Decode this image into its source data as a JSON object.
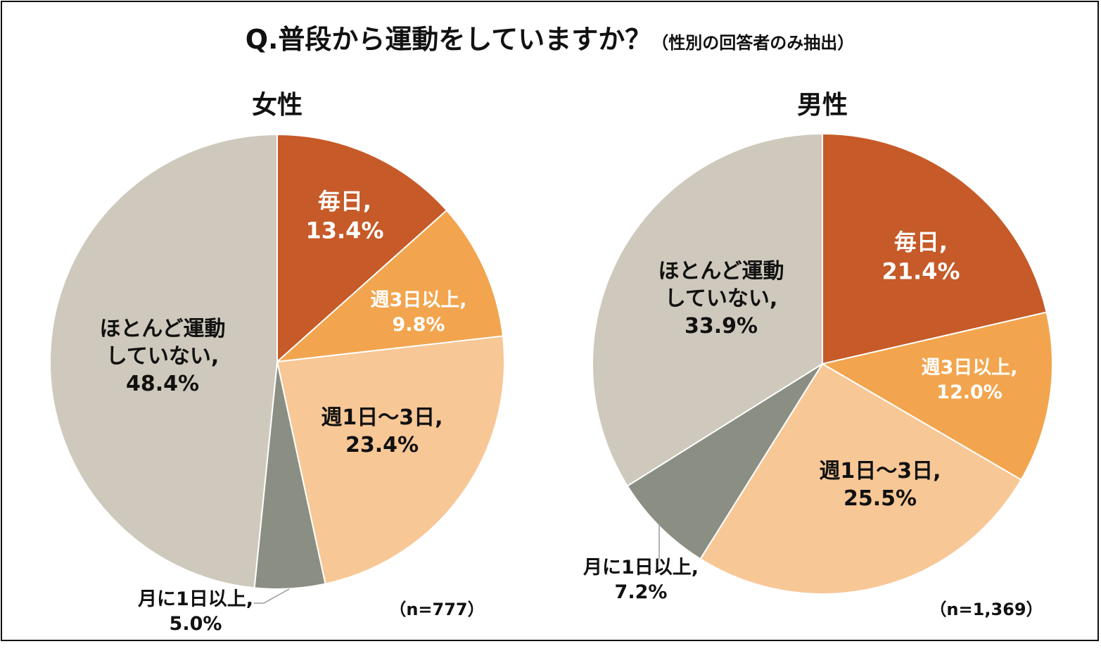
{
  "title": {
    "main": "Q.普段から運動をしていますか？",
    "sub": "（性別の回答者のみ抽出）"
  },
  "colors": {
    "daily": "#C65A28",
    "weekly3plus": "#F2A54E",
    "weekly1to3": "#F8C796",
    "monthly1plus": "#8A8E83",
    "hardly": "#CEC9BC"
  },
  "chart_data": [
    {
      "type": "pie",
      "title": "女性",
      "n_label": "（n=777）",
      "slices": [
        {
          "key": "daily",
          "label": "毎日,",
          "value": 13.4,
          "value_label": "13.4%"
        },
        {
          "key": "weekly3plus",
          "label": "週3日以上,",
          "value": 9.8,
          "value_label": "9.8%"
        },
        {
          "key": "weekly1to3",
          "label": "週1日～3日,",
          "value": 23.4,
          "value_label": "23.4%"
        },
        {
          "key": "monthly1plus",
          "label": "月に1日以上,",
          "value": 5.0,
          "value_label": "5.0%"
        },
        {
          "key": "hardly",
          "label": "ほとんど運動 していない,",
          "value": 48.4,
          "value_label": "48.4%"
        }
      ]
    },
    {
      "type": "pie",
      "title": "男性",
      "n_label": "（n=1,369）",
      "slices": [
        {
          "key": "daily",
          "label": "毎日,",
          "value": 21.4,
          "value_label": "21.4%"
        },
        {
          "key": "weekly3plus",
          "label": "週3日以上,",
          "value": 12.0,
          "value_label": "12.0%"
        },
        {
          "key": "weekly1to3",
          "label": "週1日～3日,",
          "value": 25.5,
          "value_label": "25.5%"
        },
        {
          "key": "monthly1plus",
          "label": "月に1日以上,",
          "value": 7.2,
          "value_label": "7.2%"
        },
        {
          "key": "hardly",
          "label": "ほとんど運動 していない,",
          "value": 33.9,
          "value_label": "33.9%"
        }
      ]
    }
  ]
}
